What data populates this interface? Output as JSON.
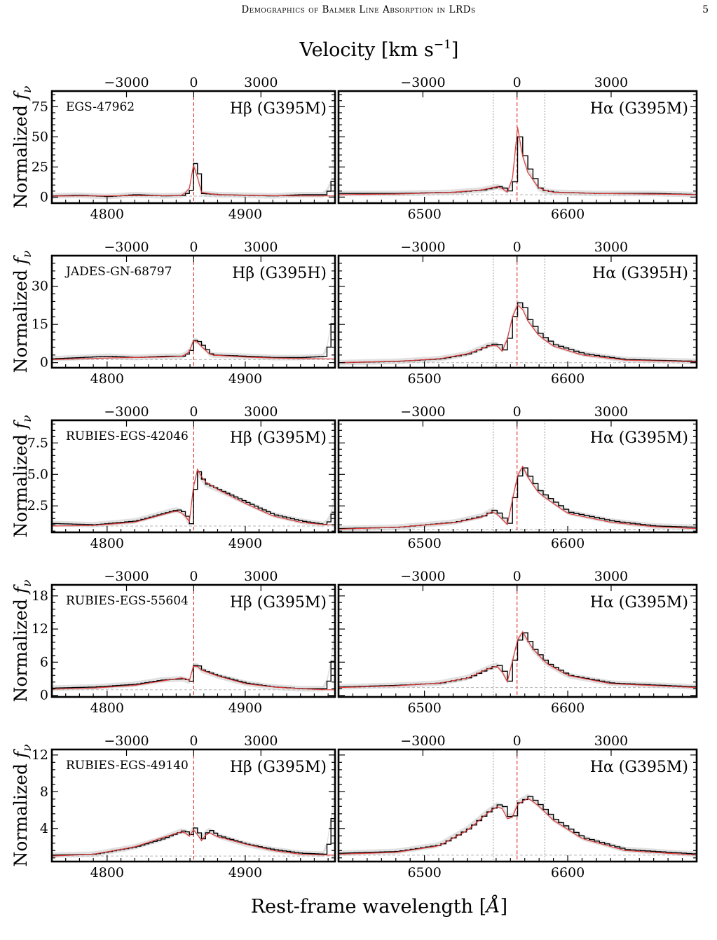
{
  "header": {
    "running_title": "Demographics of Balmer Line Absorption in LRDs",
    "page_number": "5"
  },
  "figure": {
    "top_axis_label": "Velocity [km s−1]",
    "bottom_axis_label": "Rest-frame wavelength [Å]",
    "y_axis_label": "Normalized fν",
    "velocity_ticks": [
      "−3000",
      "0",
      "3000"
    ],
    "hb_wavelength_ticks": [
      "4800",
      "4900"
    ],
    "ha_wavelength_ticks": [
      "6500",
      "6600"
    ],
    "colors": {
      "data": "#000000",
      "model": "#e03a3a",
      "error_band": "#c8c8c8",
      "reference": "#999999"
    }
  },
  "chart_data": [
    {
      "type": "line",
      "panel": "EGS-47962 Hβ",
      "object": "EGS-47962",
      "line_label": "Hβ (G395M)",
      "x_axis": "Rest-frame wavelength [Å]",
      "xlim": [
        4760,
        4965
      ],
      "ylim": [
        -5,
        88
      ],
      "yticks": [
        "0",
        "25",
        "50",
        "75"
      ],
      "line_center": 4862.7,
      "x": [
        4760,
        4780,
        4800,
        4820,
        4840,
        4855,
        4860,
        4862,
        4865,
        4868,
        4880,
        4900,
        4920,
        4940,
        4958,
        4962,
        4965
      ],
      "series": [
        {
          "name": "data",
          "values": [
            1,
            1.5,
            0.5,
            2,
            1,
            1.5,
            6,
            29,
            22,
            3,
            2,
            1.5,
            1,
            2,
            2,
            12,
            50
          ]
        },
        {
          "name": "model",
          "values": [
            0.8,
            1,
            1,
            1.2,
            1.2,
            1.5,
            8,
            28,
            18,
            4,
            2,
            1.5,
            1.2,
            1,
            1,
            1,
            1
          ]
        }
      ]
    },
    {
      "type": "line",
      "panel": "EGS-47962 Hα",
      "object": "",
      "line_label": "Hα (G395M)",
      "x_axis": "Rest-frame wavelength [Å]",
      "xlim": [
        6440,
        6690
      ],
      "ylim": [
        -5,
        88
      ],
      "yticks": [
        "0",
        "25",
        "50",
        "75"
      ],
      "line_center": 6564.6,
      "dotted_lines": [
        6548,
        6584
      ],
      "x": [
        6440,
        6480,
        6520,
        6540,
        6552,
        6558,
        6562,
        6565,
        6570,
        6580,
        6590,
        6620,
        6660,
        6690
      ],
      "series": [
        {
          "name": "data",
          "values": [
            3,
            3,
            4,
            6,
            9,
            5,
            14,
            50,
            28,
            6,
            4,
            3,
            3,
            2
          ]
        },
        {
          "name": "model",
          "values": [
            2,
            2.5,
            4,
            6,
            9,
            4,
            18,
            58,
            24,
            7,
            4,
            3,
            2.5,
            2
          ]
        }
      ]
    },
    {
      "type": "line",
      "panel": "JADES-GN-68797 Hβ",
      "object": "JADES-GN-68797",
      "line_label": "Hβ (G395H)",
      "x_axis": "Rest-frame wavelength [Å]",
      "xlim": [
        4760,
        4965
      ],
      "ylim": [
        -2,
        42
      ],
      "yticks": [
        "0",
        "15",
        "30"
      ],
      "line_center": 4862.7,
      "x": [
        4760,
        4780,
        4800,
        4820,
        4840,
        4855,
        4860,
        4863,
        4868,
        4875,
        4900,
        4920,
        4940,
        4958,
        4962,
        4965
      ],
      "series": [
        {
          "name": "data",
          "values": [
            1.5,
            2,
            2.5,
            2,
            2.5,
            2.5,
            5,
            9.5,
            7,
            3,
            2.5,
            2,
            2,
            2.5,
            15,
            27
          ]
        },
        {
          "name": "model",
          "values": [
            1.2,
            1.5,
            1.8,
            2,
            2.2,
            2.5,
            4.5,
            9.5,
            6.5,
            3,
            2.2,
            1.8,
            1.6,
            1.5,
            1.5,
            1.5
          ]
        }
      ]
    },
    {
      "type": "line",
      "panel": "JADES-GN-68797 Hα",
      "object": "",
      "line_label": "Hα (G395H)",
      "x_axis": "Rest-frame wavelength [Å]",
      "xlim": [
        6440,
        6690
      ],
      "ylim": [
        -2,
        42
      ],
      "yticks": [
        "0",
        "15",
        "30"
      ],
      "line_center": 6564.6,
      "dotted_lines": [
        6548,
        6584
      ],
      "x": [
        6440,
        6480,
        6510,
        6530,
        6545,
        6550,
        6556,
        6560,
        6566,
        6572,
        6580,
        6590,
        6610,
        6640,
        6690
      ],
      "series": [
        {
          "name": "data",
          "values": [
            0,
            0.5,
            1.5,
            3.5,
            7,
            7.5,
            4,
            16,
            25,
            17,
            11,
            7,
            3.5,
            1.2,
            0.5
          ]
        },
        {
          "name": "model",
          "values": [
            0,
            0.5,
            1.5,
            3.5,
            6.5,
            7,
            3.5,
            16,
            24,
            16.5,
            10.5,
            6.5,
            3,
            1,
            0.3
          ]
        }
      ]
    },
    {
      "type": "line",
      "panel": "RUBIES-EGS-42046 Hβ",
      "object": "RUBIES-EGS-42046",
      "line_label": "Hβ (G395M)",
      "x_axis": "Rest-frame wavelength [Å]",
      "xlim": [
        4760,
        4965
      ],
      "ylim": [
        0.4,
        9.3
      ],
      "yticks": [
        "2.5",
        "5.0",
        "7.5"
      ],
      "line_center": 4862.7,
      "x": [
        4760,
        4790,
        4820,
        4840,
        4850,
        4855,
        4860,
        4864,
        4870,
        4880,
        4900,
        4920,
        4940,
        4958,
        4962,
        4965
      ],
      "series": [
        {
          "name": "data",
          "values": [
            1.1,
            1.0,
            1.3,
            1.9,
            2.2,
            2.0,
            1.0,
            5.5,
            4.3,
            3.8,
            2.8,
            1.8,
            1.3,
            1.0,
            1.8,
            3.5
          ]
        },
        {
          "name": "model",
          "values": [
            0.9,
            0.95,
            1.2,
            1.8,
            2.1,
            1.9,
            1.2,
            5.7,
            4.5,
            3.8,
            2.7,
            1.7,
            1.2,
            1.0,
            1.0,
            1.0
          ]
        }
      ]
    },
    {
      "type": "line",
      "panel": "RUBIES-EGS-42046 Hα",
      "object": "",
      "line_label": "Hα (G395M)",
      "x_axis": "Rest-frame wavelength [Å]",
      "xlim": [
        6440,
        6690
      ],
      "ylim": [
        0.4,
        9.3
      ],
      "yticks": [
        "2.5",
        "5.0",
        "7.5"
      ],
      "line_center": 6564.6,
      "dotted_lines": [
        6548,
        6584
      ],
      "x": [
        6440,
        6480,
        6520,
        6540,
        6548,
        6552,
        6558,
        6562,
        6567,
        6573,
        6580,
        6600,
        6630,
        6660,
        6690
      ],
      "series": [
        {
          "name": "data",
          "values": [
            0.7,
            0.8,
            1.2,
            1.7,
            2.2,
            1.8,
            1.1,
            3.5,
            5.8,
            4.7,
            3.6,
            2.0,
            1.3,
            0.9,
            0.8
          ]
        },
        {
          "name": "model",
          "values": [
            0.65,
            0.8,
            1.15,
            1.6,
            2.1,
            1.7,
            1.0,
            3.3,
            6.0,
            4.6,
            3.5,
            1.9,
            1.2,
            0.85,
            0.7
          ]
        }
      ]
    },
    {
      "type": "line",
      "panel": "RUBIES-EGS-55604 Hβ",
      "object": "RUBIES-EGS-55604",
      "line_label": "Hβ (G395M)",
      "x_axis": "Rest-frame wavelength [Å]",
      "xlim": [
        4760,
        4965
      ],
      "ylim": [
        -0.3,
        20
      ],
      "yticks": [
        "0",
        "6",
        "12",
        "18"
      ],
      "line_center": 4862.7,
      "x": [
        4760,
        4790,
        4820,
        4840,
        4855,
        4860,
        4863,
        4868,
        4880,
        4900,
        4920,
        4940,
        4958,
        4962,
        4965
      ],
      "series": [
        {
          "name": "data",
          "values": [
            1.3,
            1.5,
            2,
            2.8,
            3,
            2.5,
            6,
            4.6,
            3.5,
            2.2,
            1.5,
            1.2,
            1.2,
            6,
            12
          ]
        },
        {
          "name": "model",
          "values": [
            1.1,
            1.3,
            1.8,
            2.6,
            3.2,
            2.6,
            5.8,
            4.6,
            3.5,
            2.1,
            1.5,
            1.2,
            1,
            1,
            1
          ]
        }
      ]
    },
    {
      "type": "line",
      "panel": "RUBIES-EGS-55604 Hα",
      "object": "",
      "line_label": "Hα (G395M)",
      "x_axis": "Rest-frame wavelength [Å]",
      "xlim": [
        6440,
        6690
      ],
      "ylim": [
        -0.3,
        20
      ],
      "yticks": [
        "0",
        "6",
        "12",
        "18"
      ],
      "line_center": 6564.6,
      "dotted_lines": [
        6548,
        6584
      ],
      "x": [
        6440,
        6480,
        6510,
        6530,
        6545,
        6552,
        6558,
        6562,
        6567,
        6575,
        6585,
        6600,
        6630,
        6690
      ],
      "series": [
        {
          "name": "data",
          "values": [
            1.5,
            1.8,
            2.2,
            3.2,
            5,
            5.5,
            2.5,
            7,
            12,
            8.5,
            5.8,
            3.6,
            2.2,
            1.5
          ]
        },
        {
          "name": "model",
          "values": [
            1.4,
            1.7,
            2.2,
            3.1,
            4.9,
            5.3,
            2.4,
            6.8,
            12.2,
            8.6,
            5.8,
            3.6,
            2.1,
            1.4
          ]
        }
      ]
    },
    {
      "type": "line",
      "panel": "RUBIES-EGS-49140 Hβ",
      "object": "RUBIES-EGS-49140",
      "line_label": "Hβ (G395M)",
      "x_axis": "Rest-frame wavelength [Å]",
      "xlim": [
        4760,
        4965
      ],
      "ylim": [
        0.4,
        12.6
      ],
      "yticks": [
        "4",
        "8",
        "12"
      ],
      "line_center": 4862.7,
      "x": [
        4760,
        4790,
        4820,
        4840,
        4855,
        4860,
        4863,
        4868,
        4873,
        4880,
        4900,
        4920,
        4940,
        4958,
        4962,
        4965
      ],
      "series": [
        {
          "name": "data",
          "values": [
            1.1,
            1.2,
            2,
            2.9,
            3.8,
            3.3,
            4.2,
            2.8,
            3.9,
            3.2,
            2.3,
            1.7,
            1.3,
            1.2,
            5,
            8
          ]
        },
        {
          "name": "model",
          "values": [
            1,
            1.2,
            2,
            3,
            3.7,
            3.1,
            4,
            2.6,
            3.6,
            3.1,
            2.3,
            1.6,
            1.2,
            1.1,
            1.1,
            1.1
          ]
        }
      ]
    },
    {
      "type": "line",
      "panel": "RUBIES-EGS-49140 Hα",
      "object": "",
      "line_label": "Hα (G395M)",
      "x_axis": "Rest-frame wavelength [Å]",
      "xlim": [
        6440,
        6690
      ],
      "ylim": [
        0.4,
        12.6
      ],
      "yticks": [
        "4",
        "8",
        "12"
      ],
      "line_center": 6564.6,
      "dotted_lines": [
        6548,
        6584
      ],
      "x": [
        6440,
        6480,
        6510,
        6530,
        6545,
        6553,
        6557,
        6560,
        6565,
        6572,
        6578,
        6590,
        6610,
        6640,
        6690
      ],
      "series": [
        {
          "name": "data",
          "values": [
            1.3,
            1.5,
            2.2,
            4,
            6,
            6.8,
            5.5,
            4.8,
            6.8,
            7.5,
            6.8,
            5,
            3,
            1.7,
            1.2
          ]
        },
        {
          "name": "model",
          "values": [
            1.2,
            1.4,
            2.1,
            3.8,
            5.8,
            6.6,
            5.2,
            4.7,
            6.6,
            7.3,
            6.7,
            4.9,
            2.9,
            1.6,
            1.1
          ]
        }
      ]
    }
  ]
}
